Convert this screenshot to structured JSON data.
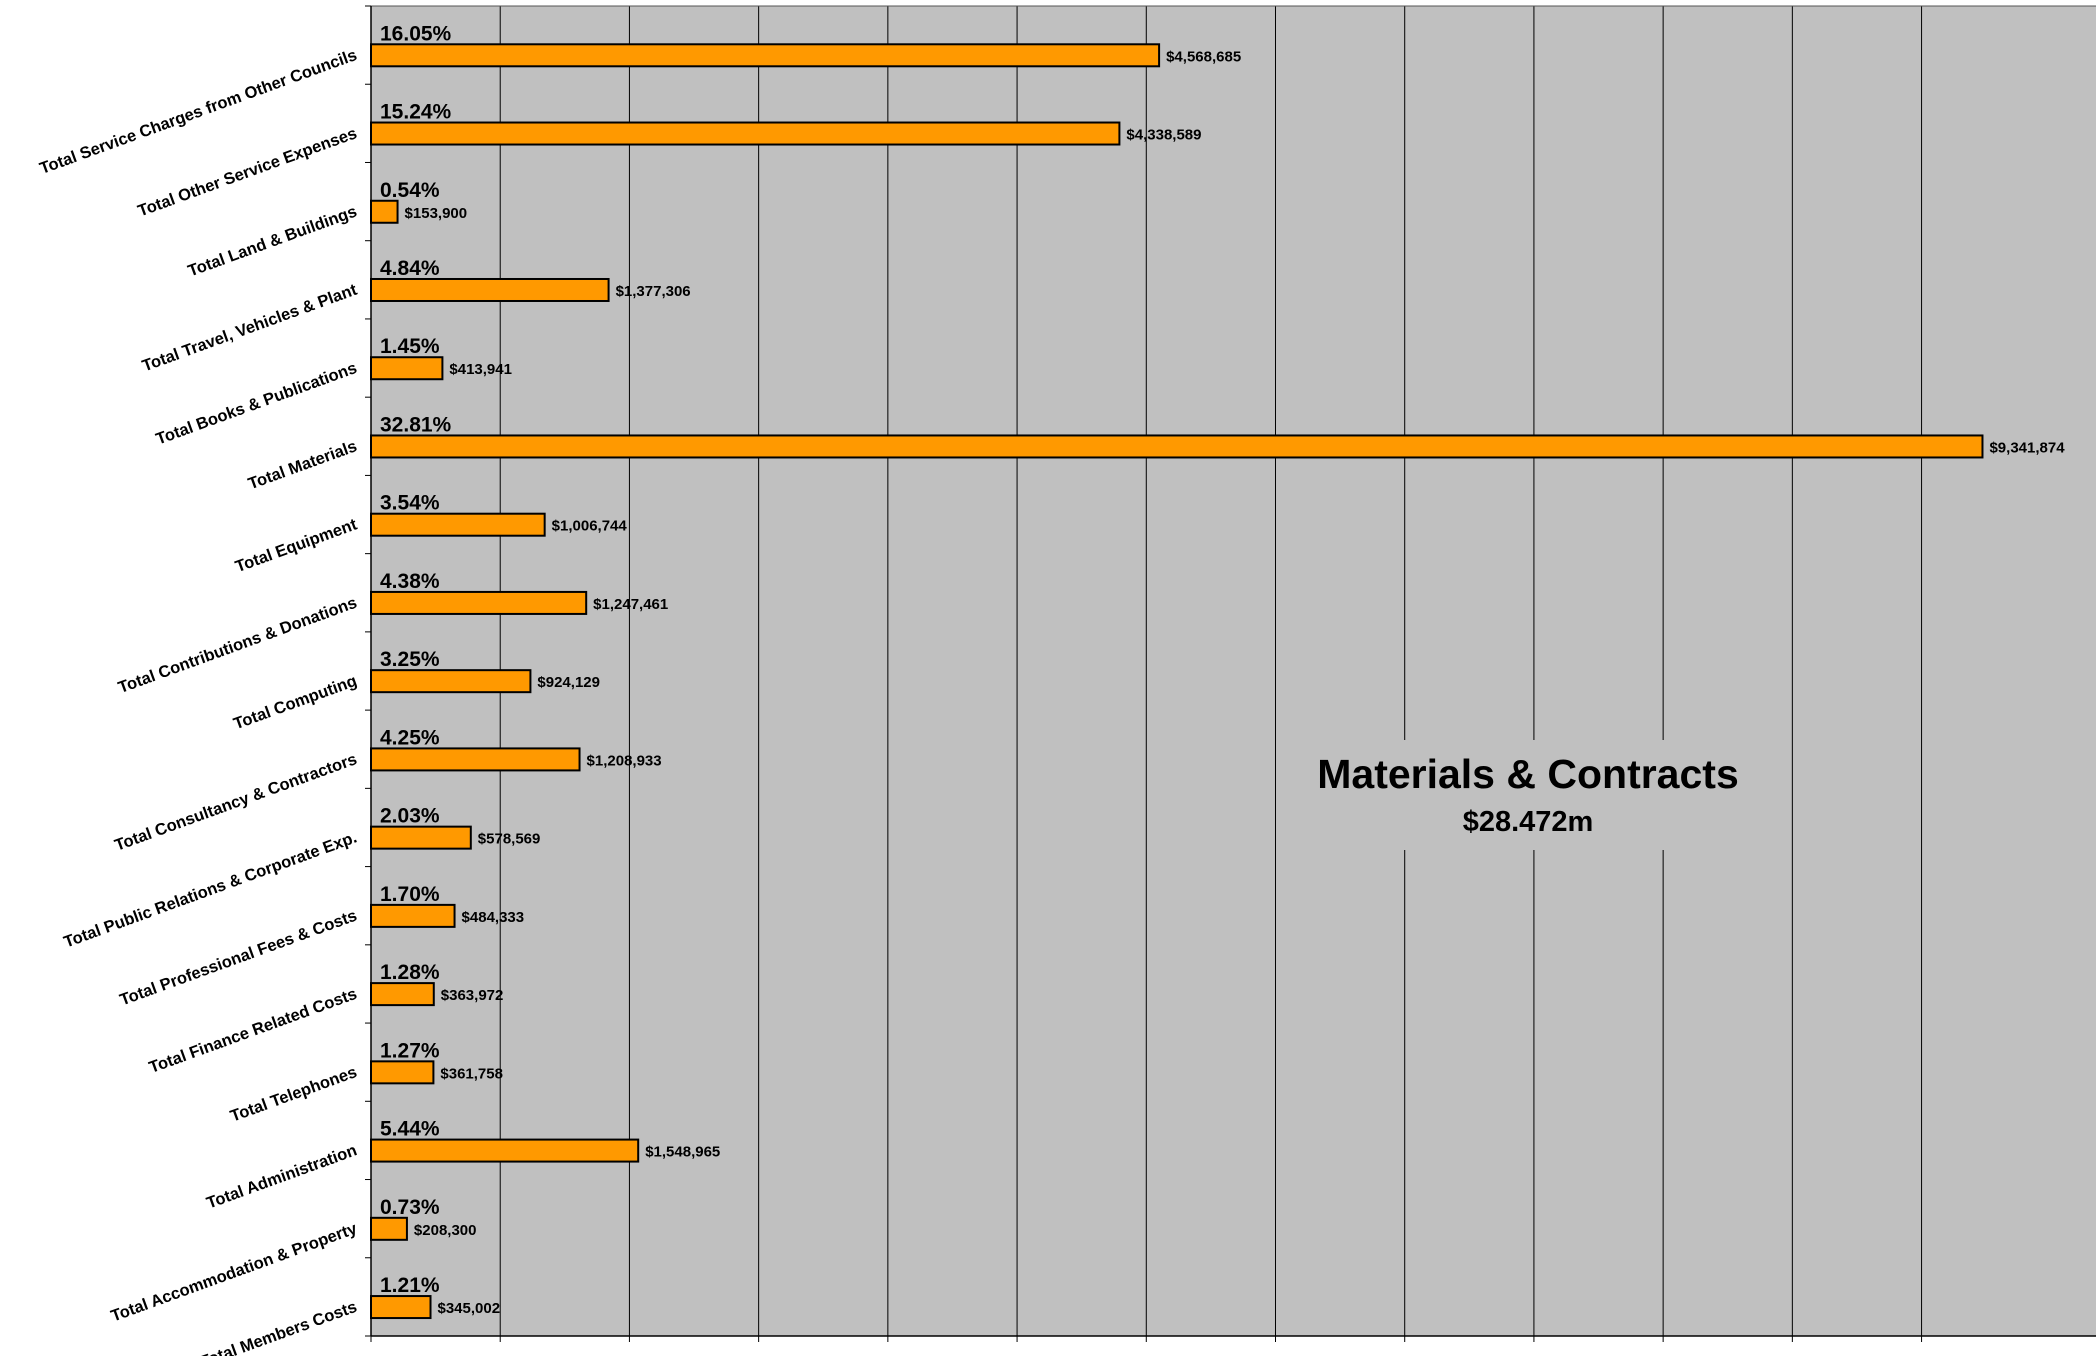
{
  "chart_data": {
    "type": "bar",
    "orientation": "horizontal",
    "title": "Materials & Contracts",
    "subtitle": "$28.472m",
    "xlim": [
      0,
      10000000
    ],
    "grid": true,
    "legend": "none",
    "colors": {
      "bar_fill": "#FF9900",
      "bar_stroke": "#000000",
      "plot_background": "#C0C0C0",
      "gridline": "#000000",
      "text": "#000000"
    },
    "categories": [
      "Total Service Charges from Other Councils",
      "Total Other Service Expenses",
      "Total Land & Buildings",
      "Total Travel, Vehicles & Plant",
      "Total Books & Publications",
      "Total Materials",
      "Total Equipment",
      "Total Contributions & Donations",
      "Total Computing",
      "Total Consultancy & Contractors",
      "Total Public Relations & Corporate Exp.",
      "Total Professional Fees & Costs",
      "Total Finance Related Costs",
      "Total Telephones",
      "Total Administration",
      "Total Accommodation & Property",
      "Total Members Costs"
    ],
    "values": [
      4568685,
      4338589,
      153900,
      1377306,
      413941,
      9341874,
      1006744,
      1247461,
      924129,
      1208933,
      578569,
      484333,
      363972,
      361758,
      1548965,
      208300,
      345002
    ],
    "value_labels": [
      "$4,568,685",
      "$4,338,589",
      "$153,900",
      "$1,377,306",
      "$413,941",
      "$9,341,874",
      "$1,006,744",
      "$1,247,461",
      "$924,129",
      "$1,208,933",
      "$578,569",
      "$484,333",
      "$363,972",
      "$361,758",
      "$1,548,965",
      "$208,300",
      "$345,002"
    ],
    "percent_labels": [
      "16.05%",
      "15.24%",
      "0.54%",
      "4.84%",
      "1.45%",
      "32.81%",
      "3.54%",
      "4.38%",
      "3.25%",
      "4.25%",
      "2.03%",
      "1.70%",
      "1.28%",
      "1.27%",
      "5.44%",
      "0.73%",
      "1.21%"
    ]
  }
}
